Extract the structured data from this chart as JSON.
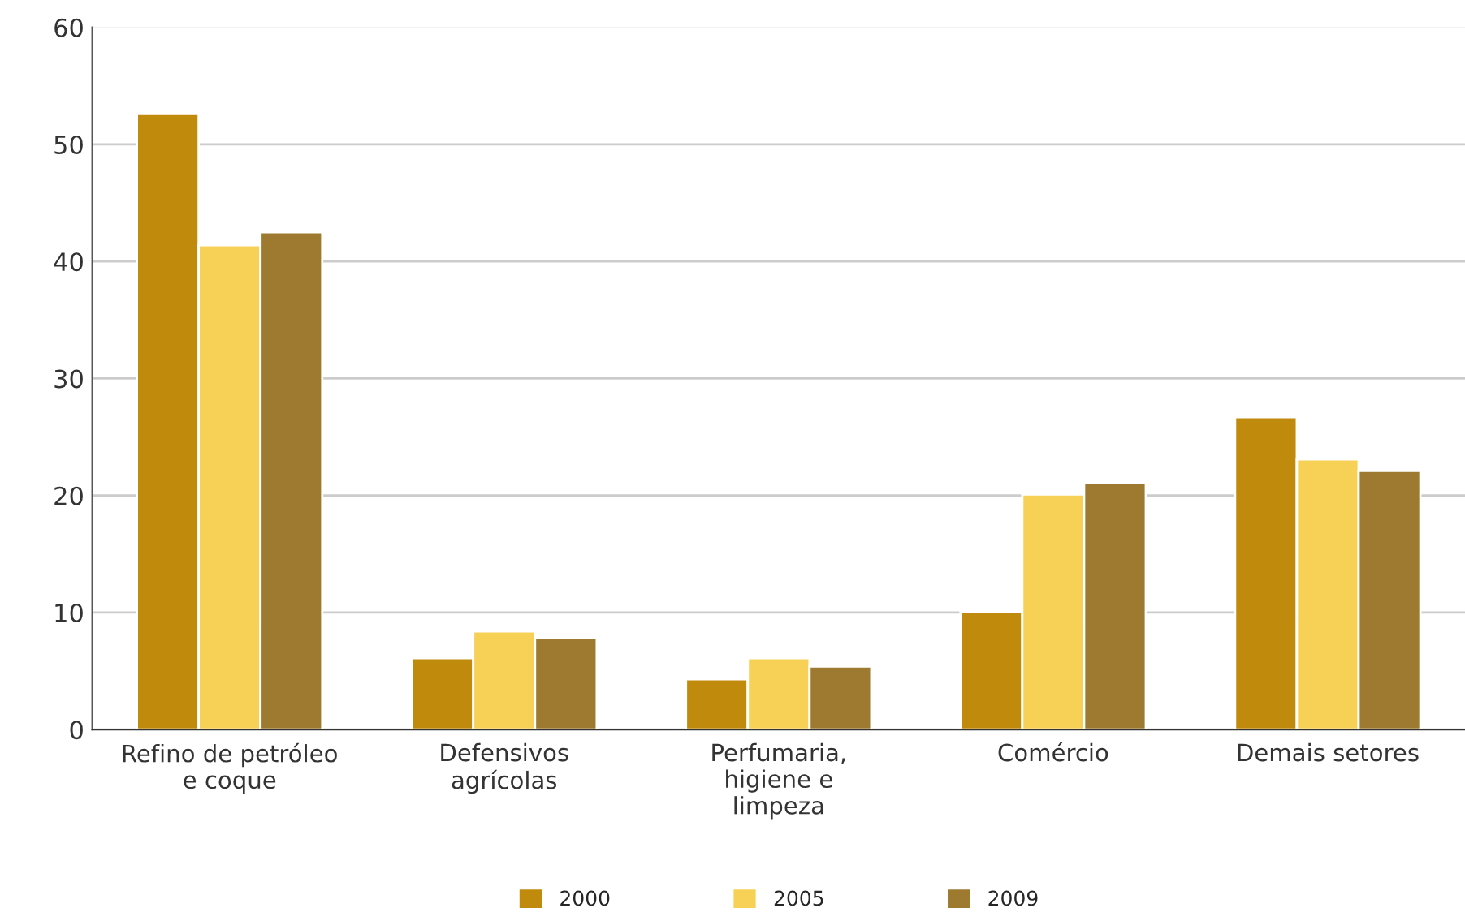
{
  "chart_data": {
    "type": "bar",
    "categories": [
      "Refino de petróleo\ne coque",
      "Defensivos\nagrícolas",
      "Perfumaria,\nhigiene e\nlimpeza",
      "Comércio",
      "Demais setores"
    ],
    "series": [
      {
        "name": "2000",
        "color": "#c08a0c",
        "values": [
          52.6,
          6.1,
          4.3,
          10.1,
          26.7
        ]
      },
      {
        "name": "2005",
        "color": "#f7d155",
        "values": [
          41.4,
          8.4,
          6.1,
          20.1,
          23.1
        ]
      },
      {
        "name": "2009",
        "color": "#9e7a31",
        "values": [
          42.5,
          7.8,
          5.4,
          21.1,
          22.1
        ]
      }
    ],
    "ylim": [
      0,
      60
    ],
    "yticks": [
      0,
      10,
      20,
      30,
      40,
      50,
      60
    ],
    "grid": "y",
    "legend": "bottom"
  }
}
